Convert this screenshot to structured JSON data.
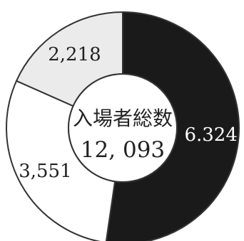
{
  "chart_data": {
    "type": "pie",
    "donut": true,
    "center_title": "入場者総数",
    "center_total": "12, 093",
    "slices": [
      {
        "label": "6.324",
        "value": 6324,
        "color": "#1a1a1a",
        "text_color": "#ffffff"
      },
      {
        "label": "3,551",
        "value": 3551,
        "color": "#ffffff",
        "text_color": "#222222"
      },
      {
        "label": "2,218",
        "value": 2218,
        "color": "#ebebeb",
        "text_color": "#222222"
      }
    ],
    "start_angle_deg": 0,
    "direction": "clockwise",
    "legend": "none",
    "grid": false
  }
}
